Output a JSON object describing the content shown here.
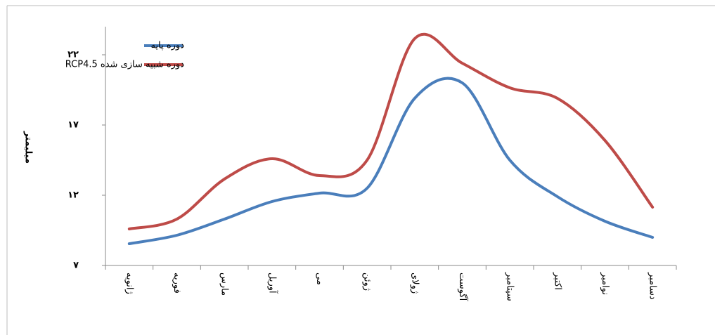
{
  "chart_data": {
    "type": "line",
    "y_label": "میلیمتر",
    "categories": [
      "ژانویه",
      "فوریه",
      "مارس",
      "آوریل",
      "می",
      "ژوئن",
      "ژولای",
      "آگوست",
      "سپتامبر",
      "اکتبر",
      "نوامبر",
      "دسامبر"
    ],
    "series": [
      {
        "name": "دوره پایه",
        "color": "#4a7ebb",
        "values": [
          8.55,
          9.15,
          10.3,
          11.55,
          12.15,
          12.5,
          18.9,
          20.0,
          14.5,
          11.9,
          10.15,
          9.0
        ]
      },
      {
        "name": "دوره شبیه سازی شده RCP4.5",
        "color": "#be4b48",
        "values": [
          9.6,
          10.3,
          13.15,
          14.6,
          13.4,
          14.5,
          23.15,
          21.4,
          19.65,
          18.9,
          15.9,
          11.15
        ]
      }
    ],
    "ylim": [
      7,
      24
    ],
    "yticks": [
      {
        "value": 7,
        "label": "۷"
      },
      {
        "value": 12,
        "label": "۱۲"
      },
      {
        "value": 17,
        "label": "۱۷"
      },
      {
        "value": 22,
        "label": "۲۲"
      }
    ],
    "legend": "top-left"
  }
}
